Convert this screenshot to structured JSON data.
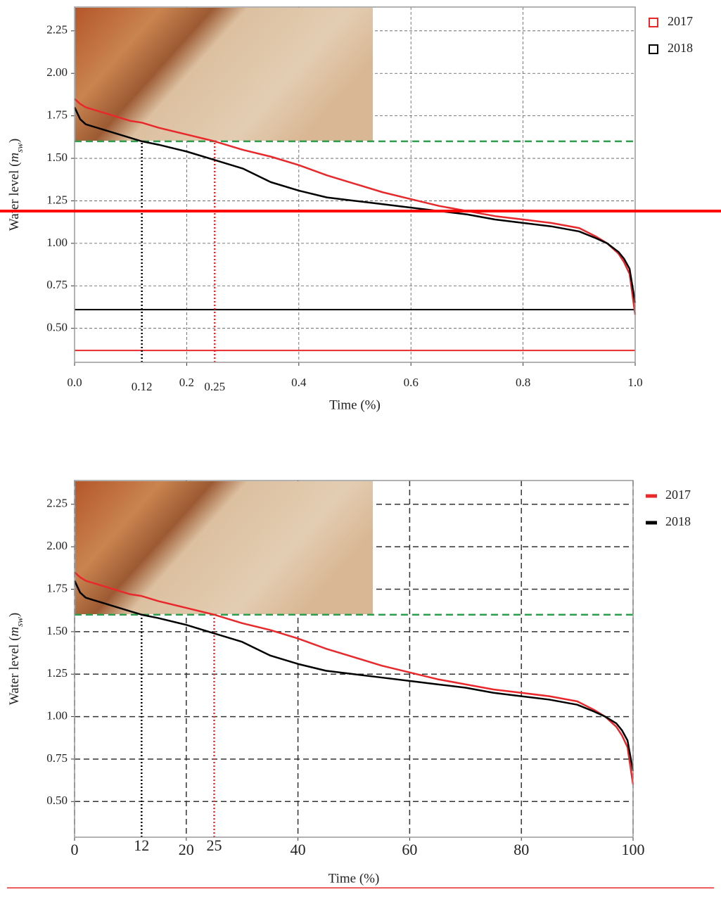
{
  "chart_data": [
    {
      "type": "line",
      "xlabel": "Time (%)",
      "ylabel": [
        "Water level (",
        "m",
        "sw",
        ")"
      ],
      "x": [
        0,
        0.01,
        0.02,
        0.05,
        0.1,
        0.12,
        0.15,
        0.2,
        0.25,
        0.3,
        0.35,
        0.4,
        0.45,
        0.5,
        0.55,
        0.6,
        0.65,
        0.7,
        0.75,
        0.8,
        0.85,
        0.9,
        0.93,
        0.95,
        0.97,
        0.98,
        0.99,
        1.0
      ],
      "series": [
        {
          "name": "2017",
          "color": "#e8282b",
          "values": [
            1.85,
            1.82,
            1.8,
            1.77,
            1.72,
            1.71,
            1.68,
            1.64,
            1.6,
            1.55,
            1.51,
            1.46,
            1.4,
            1.35,
            1.3,
            1.26,
            1.22,
            1.19,
            1.16,
            1.14,
            1.12,
            1.09,
            1.04,
            1.0,
            0.94,
            0.89,
            0.82,
            0.58
          ]
        },
        {
          "name": "2018",
          "color": "#000000",
          "values": [
            1.8,
            1.73,
            1.7,
            1.67,
            1.62,
            1.6,
            1.58,
            1.54,
            1.49,
            1.44,
            1.36,
            1.31,
            1.27,
            1.25,
            1.23,
            1.21,
            1.19,
            1.17,
            1.14,
            1.12,
            1.1,
            1.07,
            1.03,
            1.0,
            0.95,
            0.91,
            0.85,
            0.65
          ]
        }
      ],
      "xlim": [
        0,
        1
      ],
      "ylim": [
        0.3,
        2.39
      ],
      "xticks": [
        {
          "value": 0,
          "label": "0.0"
        },
        0.2,
        0.4,
        0.6,
        0.8,
        {
          "value": 1,
          "label": "1.0"
        }
      ],
      "yticks": [
        {
          "value": 0.5,
          "label": "0.50"
        },
        0.75,
        {
          "value": 1,
          "label": "1.00"
        },
        1.25,
        {
          "value": 1.5,
          "label": "1.50"
        },
        1.75,
        {
          "value": 2,
          "label": "2.00"
        },
        2.25
      ],
      "grid": true,
      "grid_style": "thin",
      "legend": "outside upper right",
      "legend_marker": "square",
      "hlines": [
        {
          "y": 1.6,
          "color": "#2e9e4f",
          "style": "dashed",
          "extent": "axes"
        },
        {
          "y": 0.61,
          "color": "#000000",
          "style": "solid",
          "extent": "axes"
        },
        {
          "y": 0.37,
          "color": "#e8282b",
          "style": "solid",
          "extent": "axes"
        },
        {
          "y": 1.19,
          "color": "#ff0000",
          "style": "thick",
          "extent": "page"
        }
      ],
      "vlines": [
        {
          "x": 0.12,
          "to": 1.6,
          "color": "#000000"
        },
        {
          "x": 0.25,
          "to": 1.6,
          "color": "#e8282b"
        }
      ]
    },
    {
      "type": "line",
      "xlabel": "Time (%)",
      "ylabel": [
        "Water level (",
        "m",
        "sw",
        ")"
      ],
      "x": [
        0,
        1,
        2,
        5,
        10,
        12,
        15,
        20,
        25,
        30,
        35,
        40,
        45,
        50,
        55,
        60,
        65,
        70,
        75,
        80,
        85,
        90,
        93,
        95,
        97,
        98,
        99,
        100
      ],
      "series": [
        {
          "name": "2017",
          "color": "#e8282b",
          "values": [
            1.85,
            1.82,
            1.8,
            1.77,
            1.72,
            1.71,
            1.68,
            1.64,
            1.6,
            1.55,
            1.51,
            1.46,
            1.4,
            1.35,
            1.3,
            1.26,
            1.22,
            1.19,
            1.16,
            1.14,
            1.12,
            1.09,
            1.04,
            1.0,
            0.94,
            0.89,
            0.82,
            0.6
          ]
        },
        {
          "name": "2018",
          "color": "#000000",
          "values": [
            1.8,
            1.73,
            1.7,
            1.67,
            1.62,
            1.6,
            1.58,
            1.54,
            1.49,
            1.44,
            1.36,
            1.31,
            1.27,
            1.25,
            1.23,
            1.21,
            1.19,
            1.17,
            1.14,
            1.12,
            1.1,
            1.07,
            1.03,
            1.0,
            0.96,
            0.92,
            0.86,
            0.68
          ]
        }
      ],
      "xlim": [
        0,
        100
      ],
      "ylim": [
        0.29,
        2.39
      ],
      "xticks": [
        0,
        20,
        40,
        60,
        80,
        100
      ],
      "yticks": [
        {
          "value": 0.5,
          "label": "0.50"
        },
        0.75,
        {
          "value": 1,
          "label": "1.00"
        },
        1.25,
        {
          "value": 1.5,
          "label": "1.50"
        },
        1.75,
        {
          "value": 2,
          "label": "2.00"
        },
        2.25
      ],
      "grid": true,
      "grid_style": "bold",
      "legend": "outside upper right",
      "legend_marker": "line",
      "hlines": [
        {
          "y": 1.6,
          "color": "#2e9e4f",
          "style": "dashed",
          "extent": "axes"
        }
      ],
      "vlines": [
        {
          "x": 12,
          "to": 1.6,
          "color": "#000000"
        },
        {
          "x": 25,
          "to": 1.6,
          "color": "#e8282b"
        }
      ]
    }
  ]
}
